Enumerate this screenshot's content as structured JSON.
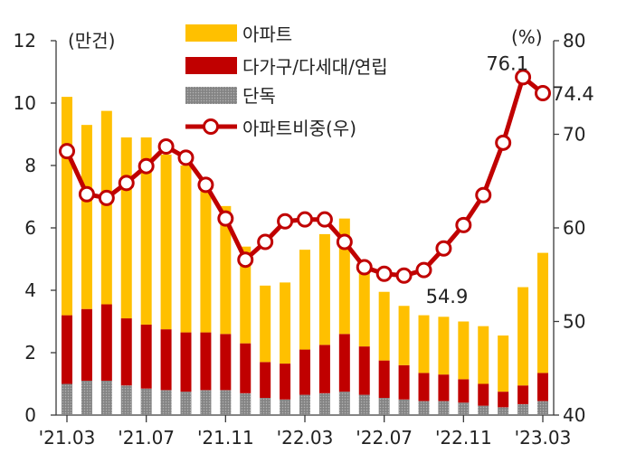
{
  "chart_data": {
    "type": "bar",
    "stacked": true,
    "x": [
      "'21.03",
      "'21.04",
      "'21.05",
      "'21.06",
      "'21.07",
      "'21.08",
      "'21.09",
      "'21.10",
      "'21.11",
      "'21.12",
      "'22.01",
      "'22.02",
      "'22.03",
      "'22.04",
      "'22.05",
      "'22.06",
      "'22.07",
      "'22.08",
      "'22.09",
      "'22.10",
      "'22.11",
      "'22.12",
      "'23.01",
      "'23.02",
      "'23.03"
    ],
    "xticks": [
      "'21.03",
      "'21.07",
      "'21.11",
      "'22.03",
      "'22.07",
      "'22.11",
      "'23.03"
    ],
    "ylabel": "(만건)",
    "ylim": [
      0,
      12
    ],
    "yticks": [
      0,
      2,
      4,
      6,
      8,
      10,
      12
    ],
    "y2label": "(%)",
    "y2lim": [
      40,
      80
    ],
    "y2ticks": [
      40,
      50,
      60,
      70,
      80
    ],
    "grid": false,
    "legend": "top-center",
    "series": [
      {
        "name": "아파트",
        "type": "bar",
        "axis": "left",
        "color": "#ffc000",
        "values": [
          7.0,
          5.9,
          6.2,
          5.8,
          6.0,
          5.6,
          5.35,
          4.85,
          4.1,
          3.1,
          2.45,
          2.6,
          3.2,
          3.55,
          3.7,
          2.65,
          2.2,
          1.9,
          1.85,
          1.85,
          1.85,
          1.85,
          1.8,
          3.15,
          3.85
        ]
      },
      {
        "name": "다가구/다세대/연립",
        "type": "bar",
        "axis": "left",
        "color": "#c00000",
        "values": [
          2.2,
          2.3,
          2.45,
          2.15,
          2.05,
          1.95,
          1.9,
          1.85,
          1.8,
          1.6,
          1.15,
          1.15,
          1.45,
          1.55,
          1.85,
          1.55,
          1.2,
          1.1,
          0.9,
          0.85,
          0.75,
          0.7,
          0.5,
          0.6,
          0.9
        ]
      },
      {
        "name": "단독",
        "type": "bar",
        "axis": "left",
        "color": "#8c8c8c",
        "values": [
          1.0,
          1.1,
          1.1,
          0.95,
          0.85,
          0.8,
          0.75,
          0.8,
          0.8,
          0.7,
          0.55,
          0.5,
          0.65,
          0.7,
          0.75,
          0.65,
          0.55,
          0.5,
          0.45,
          0.45,
          0.4,
          0.3,
          0.25,
          0.35,
          0.45
        ]
      },
      {
        "name": "아파트비중(우)",
        "type": "line",
        "axis": "right",
        "color": "#c00000",
        "values": [
          68.2,
          63.6,
          63.2,
          64.8,
          66.6,
          68.7,
          67.5,
          64.6,
          61.0,
          56.6,
          58.5,
          60.7,
          60.9,
          60.9,
          58.5,
          55.8,
          55.1,
          54.9,
          55.5,
          57.8,
          60.3,
          63.5,
          69.1,
          76.1,
          74.4
        ]
      }
    ],
    "annotations": [
      {
        "x": "'22.08",
        "text": "54.9"
      },
      {
        "x": "'23.02",
        "text": "76.1"
      },
      {
        "x": "'23.03",
        "text": "74.4"
      }
    ]
  }
}
